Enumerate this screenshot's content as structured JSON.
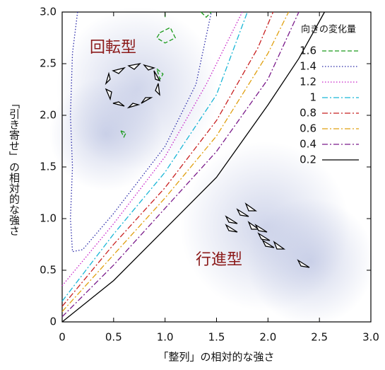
{
  "chart_data": {
    "type": "contour",
    "xlabel": "「整列」の相対的な強さ",
    "ylabel": "「引き寄せ」の相対的な強さ",
    "xlim": [
      0,
      3
    ],
    "ylim": [
      0,
      3
    ],
    "xticks": [
      0,
      0.5,
      {
        "value": 1,
        "label": "1.0"
      },
      1.5,
      {
        "value": 2,
        "label": "2.0"
      },
      2.5,
      {
        "value": 3,
        "label": "3.0"
      }
    ],
    "yticks": [
      0,
      0.5,
      {
        "value": 1,
        "label": "1.0"
      },
      1.5,
      {
        "value": 2,
        "label": "2.0"
      },
      2.5,
      {
        "value": 3,
        "label": "3.0"
      }
    ],
    "legend_title": "向きの変化量",
    "legend": "upper right",
    "annotations": [
      "回転型",
      "行進型"
    ],
    "series": [
      {
        "name": "1.6",
        "color": "#1a9a1a",
        "dash": "dashed",
        "x": [
          0.95,
          1.05,
          1.1,
          1.0,
          0.92,
          0.95,
          null,
          0.92,
          0.98,
          0.95,
          0.92,
          null,
          0.57,
          0.62,
          0.6,
          0.57,
          null,
          1.0,
          1.0,
          null,
          1.35,
          1.4,
          1.45
        ],
        "y": [
          2.8,
          2.85,
          2.75,
          2.7,
          2.75,
          2.8,
          null,
          2.45,
          2.4,
          2.35,
          2.45,
          null,
          1.85,
          1.83,
          1.79,
          1.85,
          null,
          2.95,
          3.0,
          null,
          3.0,
          2.95,
          3.0
        ]
      },
      {
        "name": "1.4",
        "color": "#2a2aa8",
        "dash": "dotted",
        "x": [
          0.15,
          0.1,
          0.08,
          0.1,
          0.08,
          0.1,
          0.2,
          0.5,
          1.0,
          1.3,
          1.45
        ],
        "y": [
          3.0,
          2.6,
          2.0,
          1.5,
          1.0,
          0.68,
          0.7,
          1.05,
          1.7,
          2.3,
          3.0
        ]
      },
      {
        "name": "1.2",
        "color": "#c71fc7",
        "dash": "dotted",
        "x": [
          0,
          0.5,
          1.0,
          1.4,
          1.75
        ],
        "y": [
          0.35,
          0.95,
          1.6,
          2.3,
          3.0
        ]
      },
      {
        "name": "1",
        "color": "#19b6d6",
        "dash": "dashdot",
        "x": [
          0,
          0.5,
          1.0,
          1.5,
          1.8
        ],
        "y": [
          0.2,
          0.85,
          1.45,
          2.2,
          3.0
        ]
      },
      {
        "name": "0.8",
        "color": "#c82020",
        "dash": "dashdot",
        "x": [
          0,
          0.5,
          1.0,
          1.5,
          1.9,
          2.05
        ],
        "y": [
          0.15,
          0.75,
          1.3,
          1.95,
          2.65,
          3.0
        ]
      },
      {
        "name": "0.6",
        "color": "#e0a010",
        "dash": "dashdot",
        "x": [
          0,
          0.5,
          1.0,
          1.5,
          2.0,
          2.2
        ],
        "y": [
          0.1,
          0.65,
          1.2,
          1.8,
          2.6,
          3.0
        ]
      },
      {
        "name": "0.4",
        "color": "#7a1a8a",
        "dash": "dashdot",
        "x": [
          0,
          0.5,
          1.0,
          1.5,
          2.0,
          2.3
        ],
        "y": [
          0.05,
          0.55,
          1.1,
          1.65,
          2.35,
          3.0
        ]
      },
      {
        "name": "0.2",
        "color": "#000000",
        "dash": "solid",
        "x": [
          0,
          0.5,
          1.0,
          1.5,
          2.0,
          2.3,
          2.55
        ],
        "y": [
          0,
          0.4,
          0.9,
          1.4,
          2.1,
          2.55,
          3.0
        ]
      }
    ]
  }
}
